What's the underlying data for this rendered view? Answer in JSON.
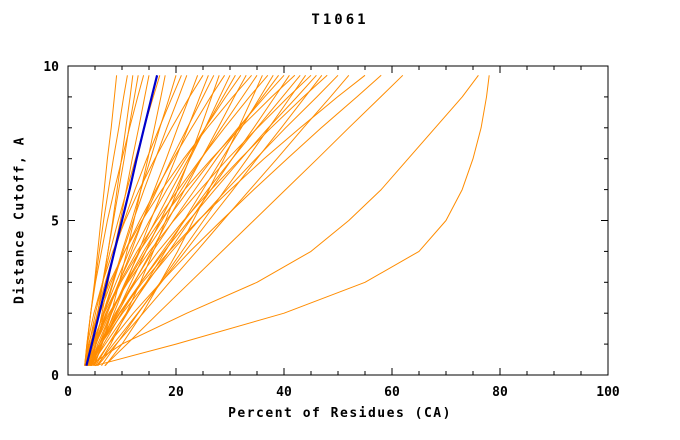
{
  "chart_data": {
    "type": "line",
    "title": "T1061",
    "xlabel": "Percent of Residues (CA)",
    "ylabel": "Distance Cutoff, A",
    "xlim": [
      0,
      100
    ],
    "ylim": [
      0,
      10
    ],
    "x_ticks": [
      0,
      20,
      40,
      60,
      80,
      100
    ],
    "y_ticks": [
      0,
      5,
      10
    ],
    "x_minor_step": 5,
    "y_minor_step": 1,
    "grid": "off",
    "legend": "none",
    "colors": {
      "model": "#ff8c00",
      "highlight": "#0000cc",
      "axis": "#000000"
    },
    "y_grid": [
      0.3,
      1,
      2,
      3,
      4,
      5,
      6,
      7,
      8,
      9,
      9.7
    ],
    "models": [
      [
        3.2,
        3.6,
        4.2,
        4.9,
        5.5,
        6.1,
        6.7,
        7.3,
        8.0,
        8.6,
        9.0
      ],
      [
        3.1,
        3.5,
        4.2,
        5.0,
        5.8,
        6.6,
        7.5,
        8.4,
        9.4,
        10.3,
        11.0
      ],
      [
        3.6,
        4.5,
        5.5,
        6.5,
        7.4,
        8.3,
        9.1,
        9.9,
        10.7,
        11.5,
        12.0
      ],
      [
        3.8,
        4.5,
        5.5,
        6.4,
        7.4,
        8.4,
        9.4,
        10.4,
        11.3,
        12.3,
        13.0
      ],
      [
        3.1,
        3.5,
        4.2,
        5.1,
        6.2,
        7.3,
        8.6,
        10.0,
        11.4,
        12.9,
        14.0
      ],
      [
        4.3,
        5.1,
        6.3,
        7.4,
        8.5,
        9.7,
        10.8,
        11.9,
        13.1,
        14.2,
        15.0
      ],
      [
        3.2,
        3.9,
        5.1,
        6.4,
        7.8,
        9.3,
        10.9,
        12.5,
        14.1,
        15.8,
        17.0
      ],
      [
        4.9,
        6.3,
        8.0,
        9.5,
        10.9,
        12.2,
        13.5,
        14.8,
        16.0,
        17.2,
        18.0
      ],
      [
        3.5,
        4.8,
        6.5,
        8.3,
        10.0,
        11.8,
        13.5,
        15.3,
        17.0,
        18.8,
        20.0
      ],
      [
        3.6,
        4.2,
        5.4,
        6.9,
        8.6,
        10.4,
        12.4,
        14.6,
        16.9,
        19.3,
        21.0
      ],
      [
        4.3,
        5.2,
        6.7,
        8.4,
        10.2,
        12.1,
        14.1,
        16.2,
        18.3,
        20.5,
        22.0
      ],
      [
        3.7,
        5.2,
        7.3,
        9.5,
        11.7,
        13.8,
        16.0,
        18.2,
        20.3,
        22.5,
        24.0
      ],
      [
        3.1,
        3.6,
        4.8,
        6.4,
        8.3,
        10.6,
        13.2,
        16.1,
        19.2,
        22.5,
        25.0
      ],
      [
        4.7,
        6.3,
        8.5,
        10.8,
        13.1,
        15.3,
        17.6,
        19.9,
        22.2,
        24.4,
        26.0
      ],
      [
        3.4,
        4.6,
        6.6,
        8.9,
        11.3,
        13.8,
        16.5,
        19.2,
        22.1,
        25.0,
        27.0
      ],
      [
        5.5,
        7.9,
        10.8,
        13.4,
        15.8,
        18.1,
        20.3,
        22.5,
        24.6,
        26.6,
        28.0
      ],
      [
        3.2,
        4.1,
        5.9,
        8.0,
        10.5,
        13.3,
        16.3,
        19.5,
        22.9,
        26.4,
        29.0
      ],
      [
        4.3,
        6.2,
        9.0,
        11.7,
        14.4,
        17.1,
        19.9,
        22.6,
        25.4,
        28.1,
        30.0
      ],
      [
        4.4,
        5.8,
        8.1,
        10.6,
        13.3,
        16.2,
        19.2,
        22.3,
        25.4,
        28.7,
        31.0
      ],
      [
        4.2,
        5.2,
        7.1,
        9.4,
        12.1,
        15.1,
        18.3,
        21.8,
        25.4,
        29.2,
        32.0
      ],
      [
        3.9,
        6.1,
        9.2,
        12.3,
        15.4,
        18.5,
        21.6,
        24.7,
        27.8,
        30.8,
        33.0
      ],
      [
        3.1,
        3.8,
        5.5,
        7.7,
        10.5,
        13.7,
        17.4,
        21.4,
        25.8,
        30.5,
        34.0
      ],
      [
        3.5,
        5.1,
        7.8,
        10.8,
        14.0,
        17.4,
        21.0,
        24.7,
        28.4,
        32.3,
        35.0
      ],
      [
        6.9,
        10.0,
        13.8,
        17.1,
        20.3,
        23.2,
        26.1,
        28.9,
        31.6,
        34.2,
        36.0
      ],
      [
        3.3,
        4.4,
        6.7,
        9.6,
        12.8,
        16.4,
        20.4,
        24.6,
        29.0,
        33.6,
        37.0
      ],
      [
        5.1,
        7.5,
        11.0,
        14.5,
        18.0,
        21.5,
        25.0,
        28.5,
        32.1,
        35.6,
        38.0
      ],
      [
        4.1,
        5.8,
        8.8,
        12.2,
        15.7,
        19.5,
        23.5,
        27.5,
        31.7,
        36.0,
        39.0
      ],
      [
        4.3,
        5.5,
        8.0,
        10.9,
        14.4,
        18.2,
        22.4,
        26.8,
        31.5,
        36.4,
        40.0
      ],
      [
        4.2,
        6.9,
        10.8,
        14.7,
        18.7,
        22.6,
        26.5,
        30.4,
        34.4,
        38.3,
        41.0
      ],
      [
        4.1,
        5.0,
        7.0,
        9.8,
        13.2,
        17.1,
        21.6,
        26.6,
        31.9,
        37.7,
        42.0
      ],
      [
        4.6,
        6.6,
        9.9,
        13.5,
        17.5,
        21.6,
        25.9,
        30.4,
        35.0,
        39.7,
        43.0
      ],
      [
        6.2,
        9.0,
        13.0,
        17.1,
        21.1,
        25.1,
        29.1,
        33.2,
        37.2,
        41.2,
        44.0
      ],
      [
        3.3,
        4.7,
        7.6,
        11.1,
        15.1,
        19.6,
        24.5,
        29.6,
        35.1,
        40.8,
        45.0
      ],
      [
        3.7,
        5.8,
        9.5,
        13.5,
        17.8,
        22.4,
        27.2,
        32.1,
        37.1,
        42.4,
        46.0
      ],
      [
        5.3,
        8.4,
        12.9,
        17.3,
        21.7,
        26.1,
        30.6,
        35.0,
        39.5,
        43.9,
        47.0
      ],
      [
        4.3,
        5.8,
        8.8,
        12.5,
        16.7,
        21.4,
        26.5,
        31.9,
        37.6,
        43.6,
        48.0
      ],
      [
        3.7,
        6.1,
        10.1,
        14.5,
        19.2,
        24.2,
        29.4,
        34.8,
        40.3,
        46.1,
        50.0
      ],
      [
        5.5,
        8.9,
        13.9,
        18.8,
        23.8,
        28.7,
        33.7,
        38.7,
        43.6,
        48.6,
        52.0
      ],
      [
        4.4,
        6.1,
        9.6,
        13.8,
        18.7,
        24.1,
        30.1,
        36.3,
        43.0,
        49.9,
        55.0
      ],
      [
        4.8,
        7.5,
        12.1,
        17.2,
        22.6,
        28.4,
        34.4,
        40.6,
        46.9,
        53.5,
        58.0
      ],
      [
        6.8,
        10.9,
        16.7,
        22.6,
        28.5,
        34.4,
        40.3,
        46.2,
        52.0,
        57.9,
        62.0
      ],
      [
        4.0,
        10.0,
        22.0,
        35.0,
        45.0,
        52.0,
        58.0,
        63.0,
        68.0,
        73.0,
        76.0
      ],
      [
        5.0,
        20.0,
        40.0,
        55.0,
        65.0,
        70.0,
        73.0,
        75.0,
        76.5,
        77.5,
        78.0
      ]
    ],
    "highlight": [
      3.4,
      4.4,
      5.8,
      7.2,
      8.6,
      10.0,
      11.4,
      12.7,
      14.1,
      15.5,
      16.5
    ]
  }
}
